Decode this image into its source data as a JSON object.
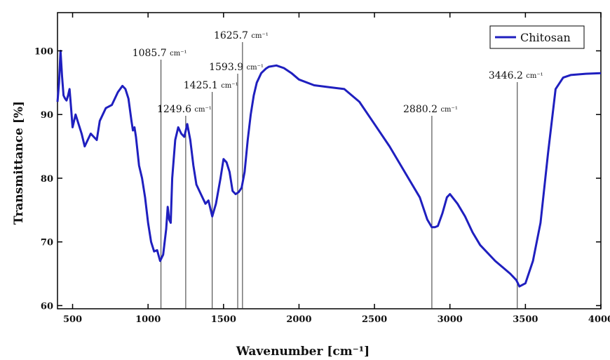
{
  "chart_data": {
    "type": "line",
    "xlabel": "Wavenumber [cm⁻¹]",
    "ylabel": "Transmittance [%]",
    "xlim": [
      400,
      4000
    ],
    "ylim": [
      59.5,
      106
    ],
    "x_ticks": [
      500,
      1000,
      1500,
      2000,
      2500,
      3000,
      3500,
      4000
    ],
    "y_ticks": [
      60,
      70,
      80,
      90,
      100
    ],
    "grid": false,
    "legend_position": "top-right",
    "line_color": "#1f1fbf",
    "series": [
      {
        "name": "Chitosan",
        "x": [
          400,
          410,
          420,
          430,
          440,
          450,
          460,
          470,
          480,
          490,
          500,
          520,
          540,
          560,
          580,
          600,
          620,
          640,
          660,
          680,
          700,
          720,
          760,
          800,
          830,
          850,
          870,
          890,
          900,
          910,
          920,
          940,
          960,
          980,
          1000,
          1020,
          1040,
          1060,
          1080,
          1100,
          1120,
          1130,
          1140,
          1150,
          1160,
          1180,
          1200,
          1220,
          1240,
          1260,
          1280,
          1300,
          1320,
          1350,
          1380,
          1400,
          1425,
          1450,
          1480,
          1500,
          1520,
          1540,
          1560,
          1580,
          1600,
          1620,
          1640,
          1660,
          1680,
          1700,
          1720,
          1750,
          1780,
          1800,
          1850,
          1900,
          1950,
          2000,
          2100,
          2200,
          2300,
          2400,
          2500,
          2600,
          2700,
          2800,
          2850,
          2880,
          2900,
          2920,
          2950,
          2980,
          3000,
          3050,
          3100,
          3150,
          3200,
          3300,
          3350,
          3400,
          3440,
          3460,
          3500,
          3550,
          3600,
          3650,
          3700,
          3750,
          3800,
          3900,
          4000
        ],
        "values": [
          92,
          95,
          100,
          96,
          93,
          92.5,
          92.2,
          93,
          94,
          91,
          88,
          90,
          88.5,
          87,
          85,
          86,
          87,
          86.5,
          86,
          89,
          90,
          91,
          91.5,
          93.5,
          94.5,
          94,
          92.5,
          89,
          87.5,
          88,
          86.5,
          82,
          80,
          77,
          73,
          70,
          68.5,
          68.7,
          67,
          68,
          72,
          75.5,
          73.5,
          73,
          80,
          86,
          88,
          87,
          86.5,
          88.5,
          86,
          82,
          79,
          77.5,
          76,
          76.5,
          74,
          76,
          80,
          83,
          82.5,
          81,
          78,
          77.5,
          77.8,
          78.5,
          81,
          86,
          90,
          93,
          95,
          96.5,
          97.2,
          97.5,
          97.7,
          97.3,
          96.5,
          95.5,
          94.6,
          94.3,
          94,
          92,
          88.5,
          85,
          81,
          77,
          73.5,
          72.3,
          72.3,
          72.5,
          74.5,
          77,
          77.5,
          76,
          74,
          71.5,
          69.5,
          67,
          66,
          65,
          64,
          63,
          63.5,
          67,
          73,
          84,
          94,
          95.8,
          96.2,
          96.4,
          96.5
        ]
      }
    ],
    "annotations": [
      {
        "x": 1085.7,
        "label": "1085.7",
        "unit": "cm⁻¹"
      },
      {
        "x": 1249.6,
        "label": "1249.6",
        "unit": "cm⁻¹"
      },
      {
        "x": 1425.1,
        "label": "1425.1",
        "unit": "cm⁻¹"
      },
      {
        "x": 1593.9,
        "label": "1593.9",
        "unit": "cm⁻¹"
      },
      {
        "x": 1625.7,
        "label": "1625.7",
        "unit": "cm⁻¹"
      },
      {
        "x": 2880.2,
        "label": "2880.2",
        "unit": "cm⁻¹"
      },
      {
        "x": 3446.2,
        "label": "3446.2",
        "unit": "cm⁻¹"
      }
    ]
  }
}
